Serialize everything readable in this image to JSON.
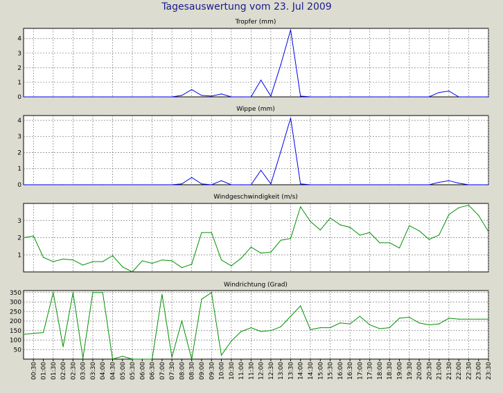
{
  "title": "Tagesauswertung vom 23. Jul 2009",
  "x_tick_labels": [
    "00:30",
    "01:00",
    "01:30",
    "02:00",
    "02:30",
    "03:00",
    "03:30",
    "04:00",
    "04:30",
    "05:00",
    "05:30",
    "06:00",
    "06:30",
    "07:00",
    "07:30",
    "08:00",
    "08:30",
    "09:00",
    "09:30",
    "10:00",
    "10:30",
    "11:00",
    "11:30",
    "12:00",
    "12:30",
    "13:00",
    "13:30",
    "14:00",
    "14:30",
    "15:00",
    "15:30",
    "16:00",
    "16:30",
    "17:00",
    "17:30",
    "18:00",
    "18:30",
    "19:00",
    "19:30",
    "20:00",
    "20:30",
    "21:00",
    "21:30",
    "22:00",
    "22:30",
    "23:00",
    "23:30"
  ],
  "colors": {
    "background": "#dcdcd0",
    "plot": "#ffffff",
    "grid": "#7a7a7a",
    "title": "#1a1a8c",
    "rain": "#0000ee",
    "wind": "#009000"
  },
  "chart_data": [
    {
      "type": "line",
      "title": "Tropfer (mm)",
      "ylim": [
        0,
        4.7
      ],
      "yticks": [
        0,
        1,
        2,
        3,
        4
      ],
      "grid": true,
      "series": [
        {
          "color": "#0000ee",
          "values": [
            0,
            0,
            0,
            0,
            0,
            0,
            0,
            0,
            0,
            0,
            0,
            0,
            0,
            0,
            0,
            0,
            0.1,
            0.5,
            0.1,
            0.05,
            0.2,
            0,
            0,
            0,
            1.15,
            0.05,
            2.2,
            4.6,
            0.05,
            0,
            0,
            0,
            0,
            0,
            0,
            0,
            0,
            0,
            0,
            0,
            0,
            0,
            0.3,
            0.4,
            0,
            0,
            0,
            0
          ]
        }
      ]
    },
    {
      "type": "line",
      "title": "Wippe (mm)",
      "ylim": [
        0,
        4.3
      ],
      "yticks": [
        0,
        1,
        2,
        3,
        4
      ],
      "grid": true,
      "series": [
        {
          "color": "#0000ee",
          "values": [
            0,
            0,
            0,
            0,
            0,
            0,
            0,
            0,
            0,
            0,
            0,
            0,
            0,
            0,
            0,
            0,
            0.05,
            0.45,
            0.05,
            0,
            0.25,
            0,
            0,
            0,
            0.9,
            0.05,
            2.05,
            4.15,
            0.05,
            0,
            0,
            0,
            0,
            0,
            0,
            0,
            0,
            0,
            0,
            0,
            0,
            0,
            0.15,
            0.25,
            0.1,
            0,
            0,
            0
          ]
        }
      ]
    },
    {
      "type": "line",
      "title": "Windgeschwindigkeit (m/s)",
      "ylim": [
        0,
        4
      ],
      "yticks": [
        1,
        2,
        3
      ],
      "grid": true,
      "series": [
        {
          "color": "#009000",
          "values": [
            2.0,
            2.1,
            0.85,
            0.6,
            0.75,
            0.7,
            0.4,
            0.6,
            0.6,
            0.95,
            0.3,
            0.0,
            0.65,
            0.5,
            0.7,
            0.65,
            0.25,
            0.45,
            2.3,
            2.3,
            0.7,
            0.35,
            0.8,
            1.45,
            1.1,
            1.15,
            1.85,
            1.95,
            3.8,
            2.95,
            2.45,
            3.15,
            2.75,
            2.6,
            2.15,
            2.3,
            1.7,
            1.7,
            1.4,
            2.7,
            2.4,
            1.9,
            2.15,
            3.35,
            3.75,
            3.9,
            3.3,
            2.35
          ]
        }
      ]
    },
    {
      "type": "line",
      "title": "Windrichtung (Grad)",
      "ylim": [
        0,
        360
      ],
      "yticks": [
        50,
        100,
        150,
        200,
        250,
        300,
        350
      ],
      "grid": true,
      "series": [
        {
          "color": "#009000",
          "values": [
            130,
            135,
            140,
            350,
            65,
            350,
            5,
            350,
            350,
            0,
            15,
            0,
            0,
            0,
            340,
            10,
            200,
            0,
            315,
            350,
            20,
            95,
            145,
            165,
            145,
            150,
            170,
            225,
            280,
            155,
            165,
            165,
            190,
            185,
            225,
            180,
            160,
            165,
            215,
            220,
            190,
            180,
            185,
            215,
            210,
            210,
            210,
            210
          ]
        }
      ]
    }
  ]
}
